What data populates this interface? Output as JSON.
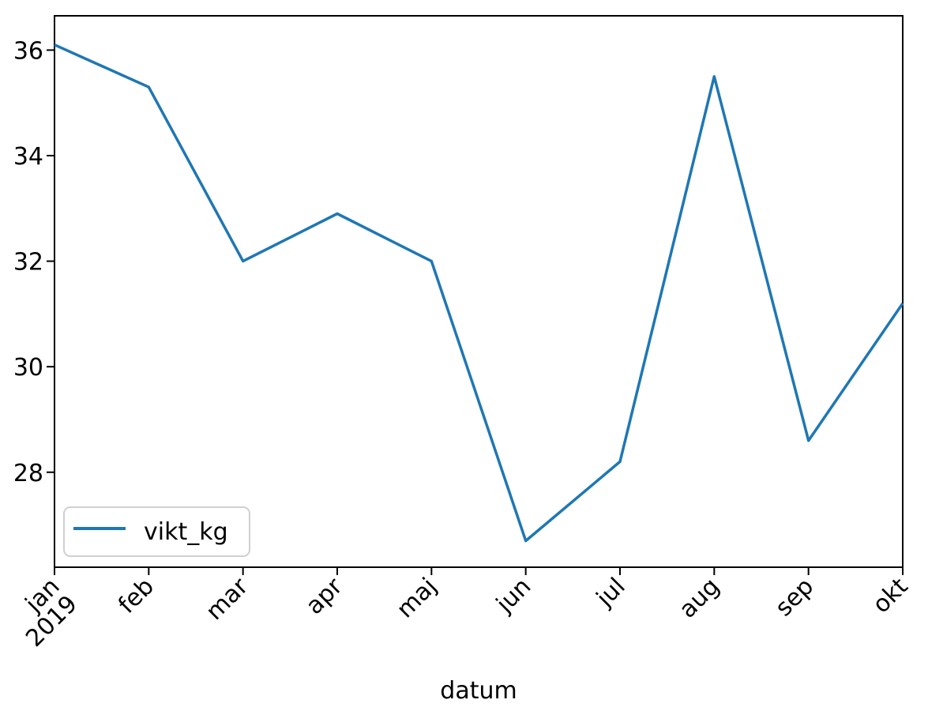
{
  "chart_data": {
    "type": "line",
    "categories": [
      "jan\n2019",
      "feb",
      "mar",
      "apr",
      "maj",
      "jun",
      "jul",
      "aug",
      "sep",
      "okt"
    ],
    "series": [
      {
        "name": "vikt_kg",
        "values": [
          36.1,
          35.3,
          32.0,
          32.9,
          32.0,
          26.7,
          28.2,
          35.5,
          28.6,
          31.2
        ],
        "color": "#1f77b4"
      }
    ],
    "xlabel": "datum",
    "ylabel": "",
    "ylim": [
      26.2,
      36.65
    ],
    "yticks": [
      28,
      30,
      32,
      34,
      36
    ],
    "grid": false,
    "legend_position": "lower-left"
  }
}
